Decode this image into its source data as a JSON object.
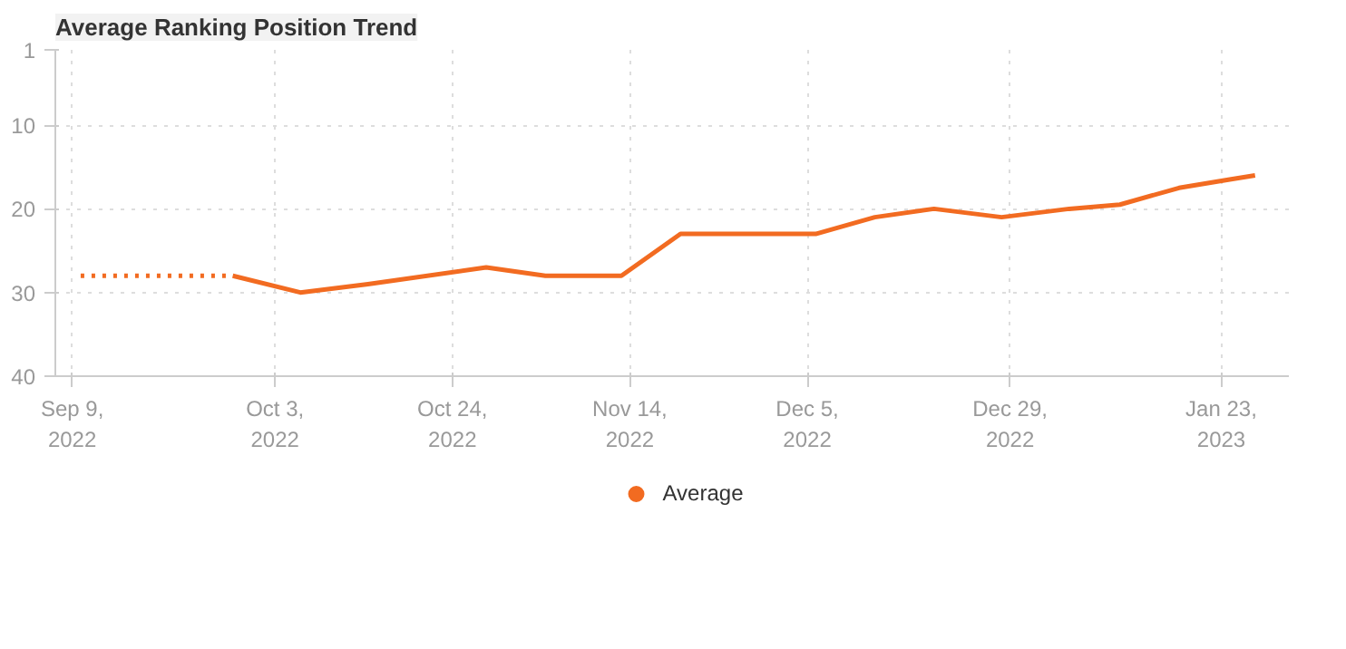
{
  "chart_data": {
    "type": "line",
    "title": "Average Ranking Position Trend",
    "series": [
      {
        "color": "#f26b21",
        "line_style": "dotted",
        "x": [
          "2022-09-10",
          "2022-09-28"
        ],
        "values": [
          28,
          28
        ]
      },
      {
        "name": "Average",
        "color": "#f26b21",
        "line_style": "solid",
        "x": [
          "2022-09-28",
          "2022-10-06",
          "2022-10-14",
          "2022-10-28",
          "2022-11-04",
          "2022-11-13",
          "2022-11-20",
          "2022-12-06",
          "2022-12-13",
          "2022-12-20",
          "2022-12-28",
          "2023-01-05",
          "2023-01-11",
          "2023-01-18",
          "2023-01-24",
          "2023-01-27"
        ],
        "values": [
          28,
          30,
          29,
          27,
          28,
          28,
          23,
          23,
          21,
          20,
          21,
          20,
          19.5,
          17.5,
          16.5,
          16
        ]
      }
    ],
    "xlim": [
      "2022-09-07",
      "2023-01-31"
    ],
    "xticks": [
      {
        "value": "2022-09-09",
        "label": "Sep 9,\n2022"
      },
      {
        "value": "2022-10-03",
        "label": "Oct 3,\n2022"
      },
      {
        "value": "2022-10-24",
        "label": "Oct 24,\n2022"
      },
      {
        "value": "2022-11-14",
        "label": "Nov 14,\n2022"
      },
      {
        "value": "2022-12-05",
        "label": "Dec 5,\n2022"
      },
      {
        "value": "2022-12-29",
        "label": "Dec 29,\n2022"
      },
      {
        "value": "2023-01-23",
        "label": "Jan 23,\n2023"
      }
    ],
    "ylim": [
      40,
      1
    ],
    "yticks": [
      1,
      10,
      20,
      30,
      40
    ],
    "grid": true,
    "legend": "bottom",
    "marker": "none"
  }
}
